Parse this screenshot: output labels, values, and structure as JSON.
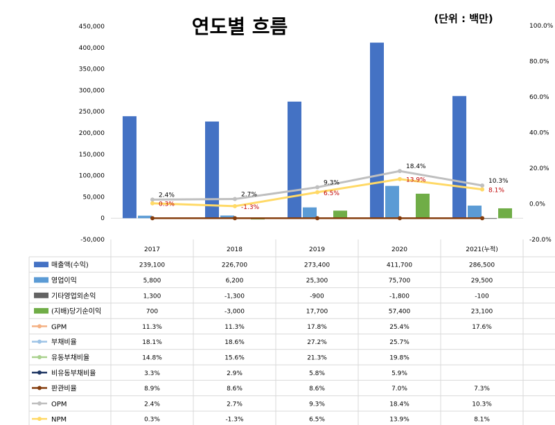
{
  "chart_data": {
    "type": "bar",
    "title": "연도별 흐름",
    "unit_label": "(단위 : 백만)",
    "categories": [
      "2017",
      "2018",
      "2019",
      "2020",
      "2021(누적)"
    ],
    "y_left": {
      "min": -50000,
      "max": 450000,
      "step": 50000,
      "tick_labels": [
        "-50,000",
        "0",
        "50,000",
        "100,000",
        "150,000",
        "200,000",
        "250,000",
        "300,000",
        "350,000",
        "400,000",
        "450,000"
      ]
    },
    "y_right": {
      "min": -20,
      "max": 100,
      "step": 20,
      "tick_labels": [
        "-20.0%",
        "0.0%",
        "20.0%",
        "40.0%",
        "60.0%",
        "80.0%",
        "100.0%"
      ]
    },
    "bar_series": [
      {
        "name": "매출액(수익)",
        "color": "#4472c4",
        "values": [
          239100,
          226700,
          273400,
          411700,
          286500
        ]
      },
      {
        "name": "영업이익",
        "color": "#5b9bd5",
        "values": [
          5800,
          6200,
          25300,
          75700,
          29500
        ]
      },
      {
        "name": "기타영업외손익",
        "color": "#636363",
        "values": [
          1300,
          -1300,
          -900,
          -1800,
          -100
        ]
      },
      {
        "name": "(지배)당기순이익",
        "color": "#70ad47",
        "values": [
          700,
          -3000,
          17700,
          57400,
          23100
        ]
      }
    ],
    "line_series": [
      {
        "name": "GPM",
        "color": "#f4b183",
        "values": [
          11.3,
          11.3,
          17.8,
          25.4,
          17.6
        ],
        "plotted": false
      },
      {
        "name": "부채비율",
        "color": "#9dc3e6",
        "values": [
          18.1,
          18.6,
          27.2,
          25.7,
          null
        ],
        "plotted": false
      },
      {
        "name": "유동부채비율",
        "color": "#a9d18e",
        "values": [
          14.8,
          15.6,
          21.3,
          19.8,
          null
        ],
        "plotted": false
      },
      {
        "name": "비유동부채비율",
        "color": "#203864",
        "values": [
          3.3,
          2.9,
          5.8,
          5.9,
          null
        ],
        "plotted": false
      },
      {
        "name": "판관비율",
        "color": "#843c0c",
        "values": [
          8.9,
          8.6,
          8.6,
          7.0,
          7.3
        ],
        "plotted": true,
        "axis": "left_zero"
      },
      {
        "name": "OPM",
        "color": "#bfbfbf",
        "values": [
          2.4,
          2.7,
          9.3,
          18.4,
          10.3
        ],
        "plotted": true,
        "labels_color": "#000000"
      },
      {
        "name": "NPM",
        "color": "#ffd966",
        "values": [
          0.3,
          -1.3,
          6.5,
          13.9,
          8.1
        ],
        "plotted": true,
        "labels_color": "#c00000"
      }
    ],
    "table": {
      "rows": [
        [
          "239,100",
          "226,700",
          "273,400",
          "411,700",
          "286,500"
        ],
        [
          "5,800",
          "6,200",
          "25,300",
          "75,700",
          "29,500"
        ],
        [
          "1,300",
          "-1,300",
          "-900",
          "-1,800",
          "-100"
        ],
        [
          "700",
          "-3,000",
          "17,700",
          "57,400",
          "23,100"
        ],
        [
          "11.3%",
          "11.3%",
          "17.8%",
          "25.4%",
          "17.6%"
        ],
        [
          "18.1%",
          "18.6%",
          "27.2%",
          "25.7%",
          ""
        ],
        [
          "14.8%",
          "15.6%",
          "21.3%",
          "19.8%",
          ""
        ],
        [
          "3.3%",
          "2.9%",
          "5.8%",
          "5.9%",
          ""
        ],
        [
          "8.9%",
          "8.6%",
          "8.6%",
          "7.0%",
          "7.3%"
        ],
        [
          "2.4%",
          "2.7%",
          "9.3%",
          "18.4%",
          "10.3%"
        ],
        [
          "0.3%",
          "-1.3%",
          "6.5%",
          "13.9%",
          "8.1%"
        ]
      ]
    },
    "opm_point_labels": [
      "2.4%",
      "2.7%",
      "9.3%",
      "18.4%",
      "10.3%"
    ],
    "npm_point_labels": [
      "0.3%",
      "-1.3%",
      "6.5%",
      "13.9%",
      "8.1%"
    ]
  }
}
